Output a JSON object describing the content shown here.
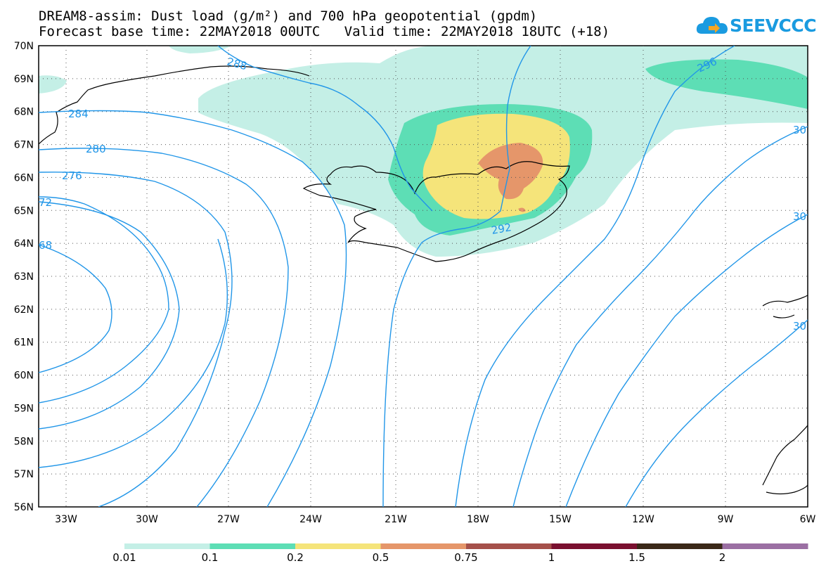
{
  "header": {
    "title_line1": "DREAM8-assim: Dust load (g/m²) and 700 hPa geopotential (gpdm)",
    "title_line2": "Forecast base time: 22MAY2018 00UTC   Valid time: 22MAY2018 18UTC (+18)"
  },
  "logo": {
    "text": "SEEVCCC",
    "icon": "cloud-icon",
    "color": "#1a9be0"
  },
  "map": {
    "region": "Iceland and North Atlantic",
    "lat_labels": [
      "70N",
      "69N",
      "68N",
      "67N",
      "66N",
      "65N",
      "64N",
      "63N",
      "62N",
      "61N",
      "60N",
      "59N",
      "58N",
      "57N",
      "56N"
    ],
    "lon_labels": [
      "33W",
      "30W",
      "27W",
      "24W",
      "21W",
      "18W",
      "15W",
      "12W",
      "9W",
      "6W"
    ],
    "contour_color": "#2196e8",
    "contour_labels": [
      "288",
      "284",
      "280",
      "276",
      "72",
      "68",
      "292",
      "296",
      "30",
      "30",
      "30"
    ],
    "coastline_color": "#000000"
  },
  "colorbar": {
    "labels": [
      "0.01",
      "0.1",
      "0.2",
      "0.5",
      "0.75",
      "1",
      "1.5",
      "2"
    ],
    "colors": [
      "#c4efe6",
      "#5ddeb5",
      "#f5e47a",
      "#e5966a",
      "#a5504a",
      "#7a1030",
      "#3a2818",
      "#9b6fa3"
    ]
  }
}
